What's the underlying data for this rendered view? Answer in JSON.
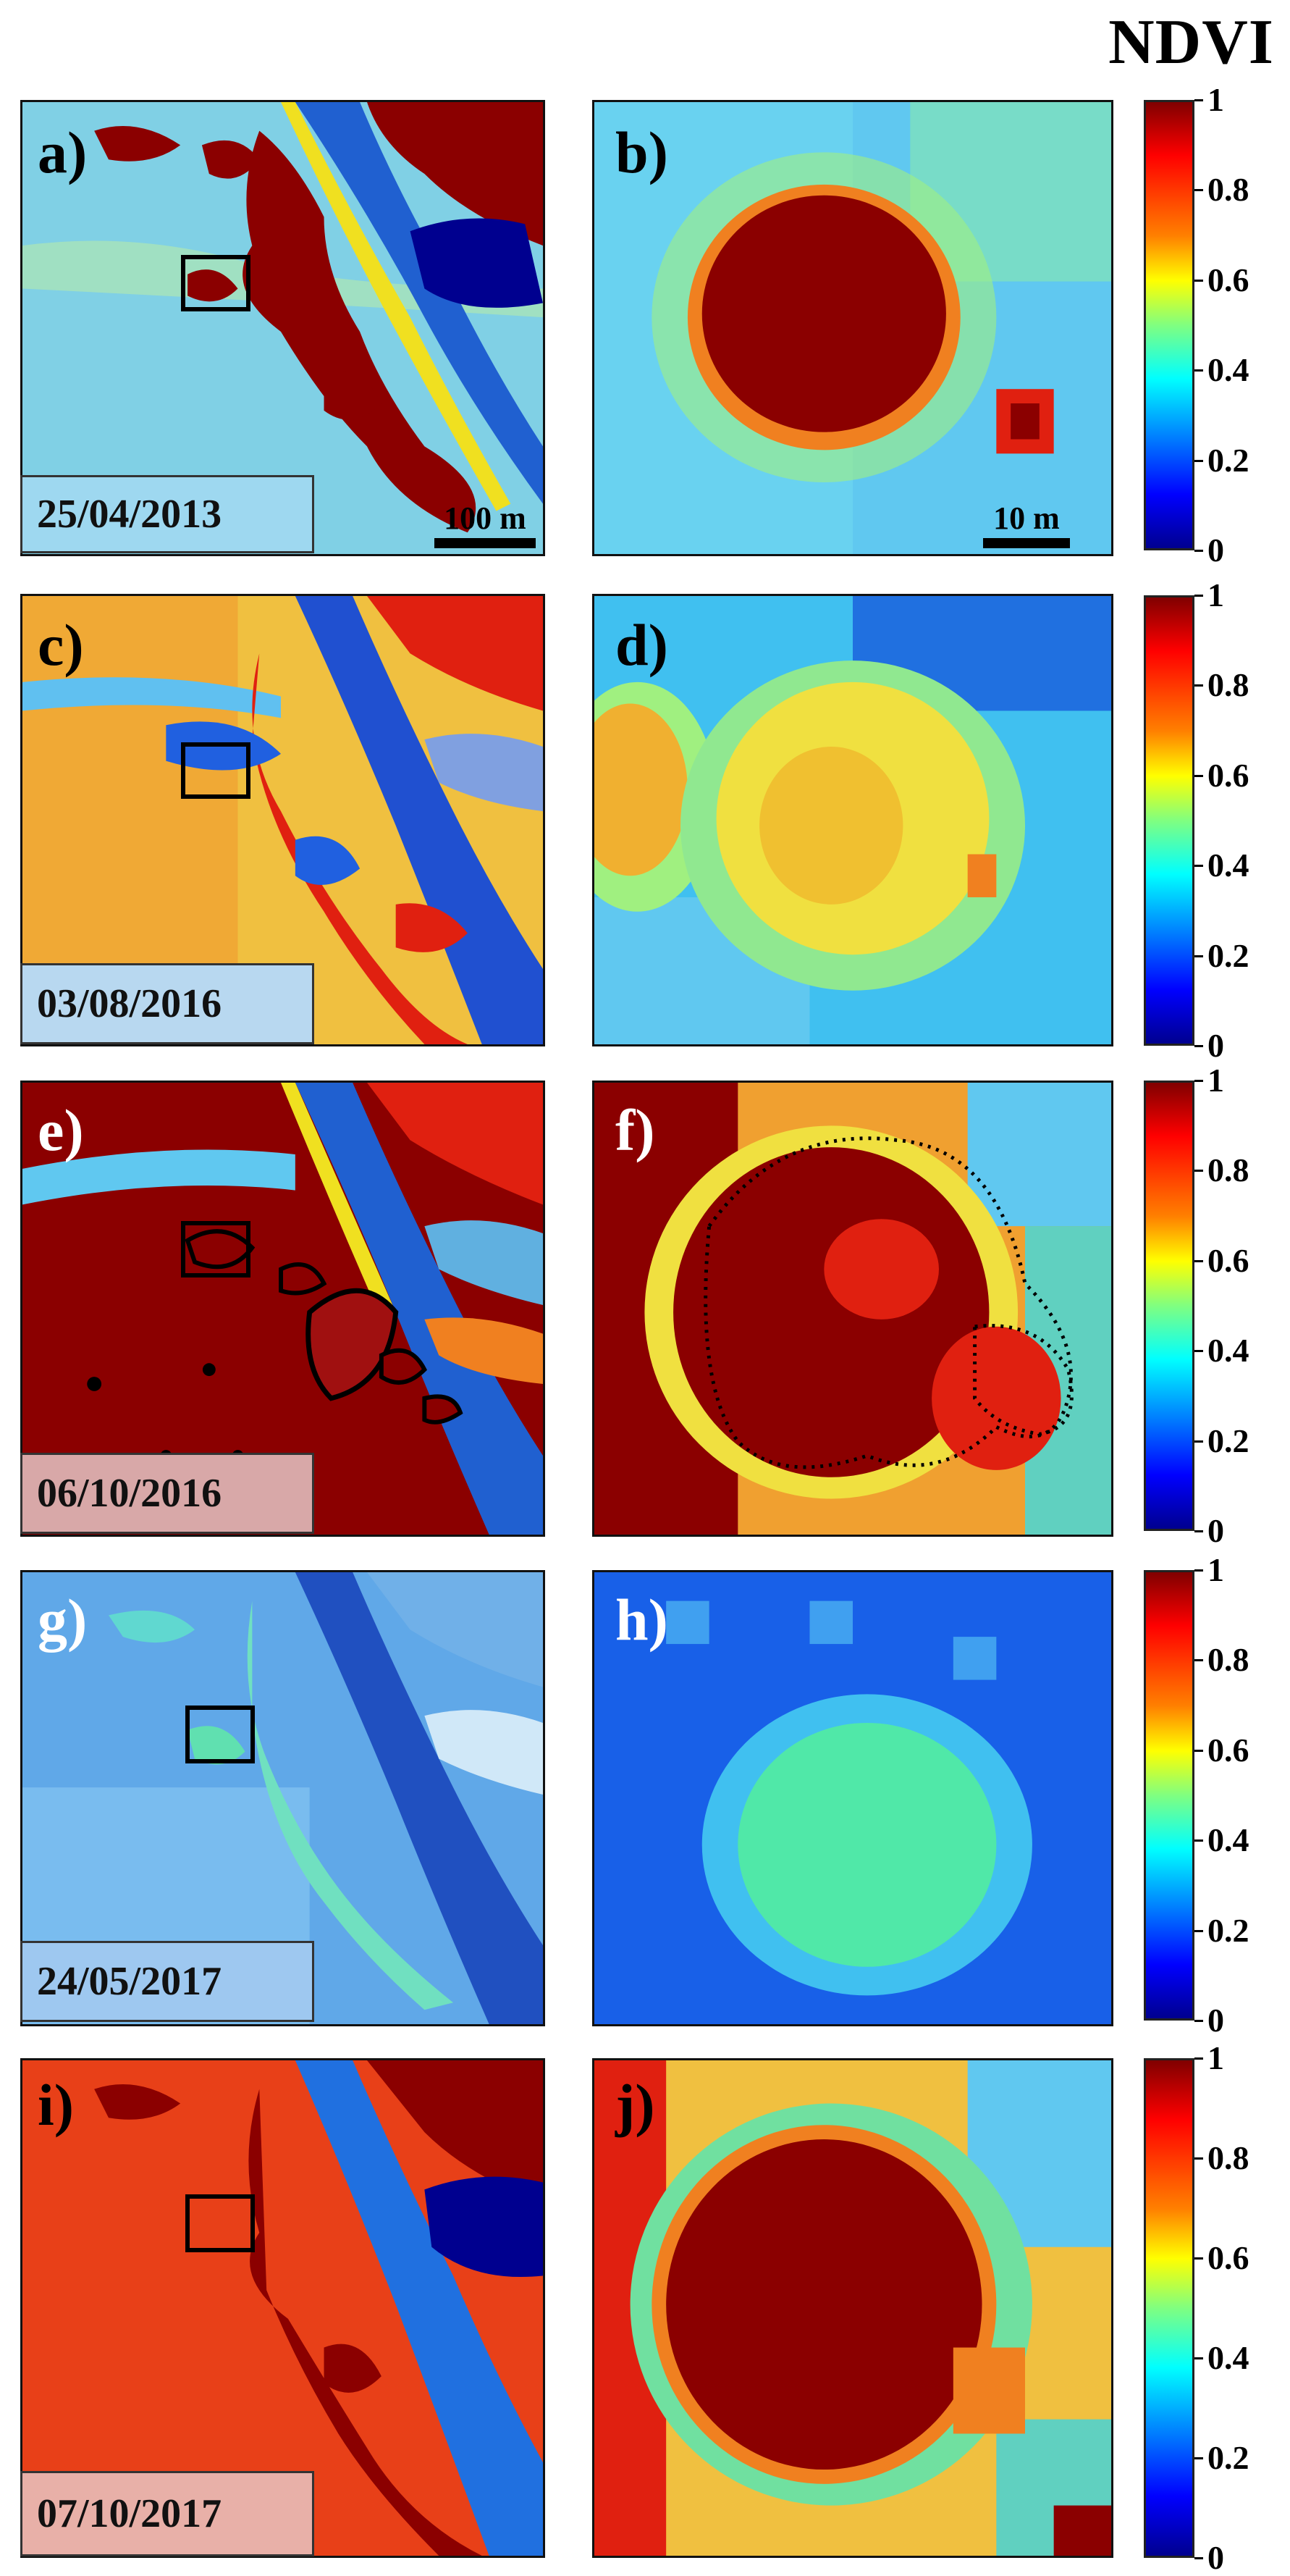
{
  "title": "NDVI",
  "rows": [
    {
      "left_label": "a)",
      "right_label": "b)",
      "date": "25/04/2013",
      "scale_left": "100 m",
      "scale_right": "10 m"
    },
    {
      "left_label": "c)",
      "right_label": "d)",
      "date": "03/08/2016"
    },
    {
      "left_label": "e)",
      "right_label": "f)",
      "date": "06/10/2016"
    },
    {
      "left_label": "g)",
      "right_label": "h)",
      "date": "24/05/2017"
    },
    {
      "left_label": "i)",
      "right_label": "j)",
      "date": "07/10/2017"
    }
  ],
  "colorbar_ticks": [
    "1",
    "0.8",
    "0.6",
    "0.4",
    "0.2",
    "0"
  ],
  "colors": {
    "dark_red": "#8b0000",
    "red": "#e02010",
    "orange": "#f08020",
    "yellow": "#f0e020",
    "green": "#60e080",
    "cyan": "#40d0f0",
    "light_blue": "#60b0f0",
    "blue": "#2060e0",
    "navy": "#000090"
  }
}
